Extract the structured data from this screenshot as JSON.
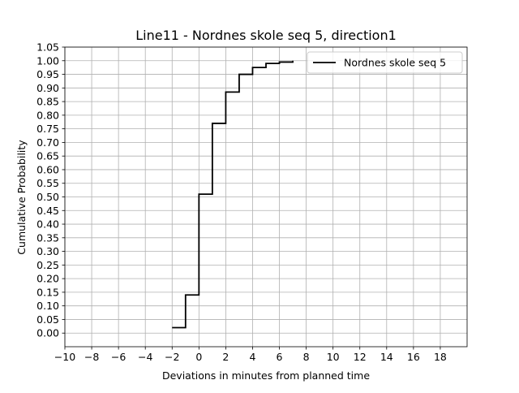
{
  "chart_data": {
    "type": "line",
    "drawstyle": "steps-post",
    "title": "Line11 - Nordnes skole seq 5, direction1",
    "xlabel": "Deviations in minutes from planned time",
    "ylabel": "Cumulative Probability",
    "xlim": [
      -10,
      20
    ],
    "ylim": [
      -0.05,
      1.05
    ],
    "xticks": [
      -10,
      -8,
      -6,
      -4,
      -2,
      0,
      2,
      4,
      6,
      8,
      10,
      12,
      14,
      16,
      18
    ],
    "xtick_labels": [
      "−10",
      "−8",
      "−6",
      "−4",
      "−2",
      "0",
      "2",
      "4",
      "6",
      "8",
      "10",
      "12",
      "14",
      "16",
      "18"
    ],
    "yticks": [
      0,
      0.05,
      0.1,
      0.15,
      0.2,
      0.25,
      0.3,
      0.35,
      0.4,
      0.45,
      0.5,
      0.55,
      0.6,
      0.65,
      0.7,
      0.75,
      0.8,
      0.85,
      0.9,
      0.95,
      1.0,
      1.05
    ],
    "ytick_labels": [
      "0.00",
      "0.05",
      "0.10",
      "0.15",
      "0.20",
      "0.25",
      "0.30",
      "0.35",
      "0.40",
      "0.45",
      "0.50",
      "0.55",
      "0.60",
      "0.65",
      "0.70",
      "0.75",
      "0.80",
      "0.85",
      "0.90",
      "0.95",
      "1.00",
      "1.05"
    ],
    "grid": true,
    "legend": {
      "placement": "upper-right"
    },
    "series": [
      {
        "name": "Nordnes skole seq 5",
        "color": "#000000",
        "x": [
          -2,
          -1,
          0,
          1,
          2,
          3,
          4,
          5,
          6,
          7
        ],
        "y": [
          0.02,
          0.14,
          0.51,
          0.77,
          0.885,
          0.95,
          0.975,
          0.99,
          0.995,
          1.0
        ]
      }
    ]
  }
}
